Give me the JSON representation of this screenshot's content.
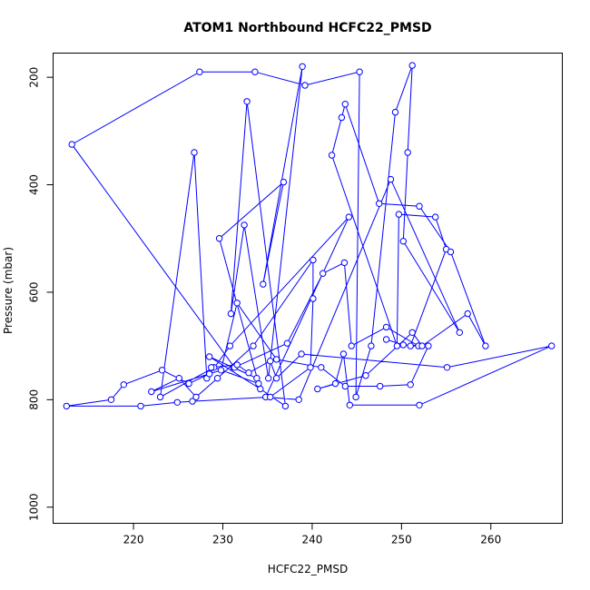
{
  "chart_data": {
    "type": "line",
    "title": "ATOM1 Northbound HCFC22_PMSD",
    "xlabel": "HCFC22_PMSD",
    "ylabel": "Pressure (mbar)",
    "xlim": [
      211,
      268
    ],
    "ylim": [
      1030,
      155
    ],
    "y_reversed": true,
    "x_ticks": [
      220,
      230,
      240,
      250,
      260
    ],
    "y_ticks": [
      200,
      400,
      600,
      800,
      1000
    ],
    "grid": false,
    "legend": "none",
    "series_color": "#0000ff",
    "marker": "open-circle",
    "points": [
      [
        231.2,
        740
      ],
      [
        233.8,
        760
      ],
      [
        228.5,
        720
      ],
      [
        234.2,
        780
      ],
      [
        237.0,
        812
      ],
      [
        232.7,
        245
      ],
      [
        230.9,
        640
      ],
      [
        232.4,
        475
      ],
      [
        235.1,
        760
      ],
      [
        238.9,
        180
      ],
      [
        234.5,
        585
      ],
      [
        236.8,
        395
      ],
      [
        229.6,
        500
      ],
      [
        234.0,
        770
      ],
      [
        229.0,
        740
      ],
      [
        223.0,
        795
      ],
      [
        226.8,
        340
      ],
      [
        228.2,
        760
      ],
      [
        230.8,
        700
      ],
      [
        244.1,
        460
      ],
      [
        234.8,
        795
      ],
      [
        238.5,
        800
      ],
      [
        248.8,
        390
      ],
      [
        256.5,
        675
      ],
      [
        250.2,
        505
      ],
      [
        250.7,
        340
      ],
      [
        251.2,
        178
      ],
      [
        249.3,
        265
      ],
      [
        246.6,
        700
      ],
      [
        244.9,
        795
      ],
      [
        245.3,
        190
      ],
      [
        239.2,
        215
      ],
      [
        233.6,
        190
      ],
      [
        227.4,
        190
      ],
      [
        213.1,
        325
      ],
      [
        231.3,
        740
      ],
      [
        237.2,
        695
      ],
      [
        241.2,
        565
      ],
      [
        243.6,
        545
      ],
      [
        244.4,
        700
      ],
      [
        248.3,
        665
      ],
      [
        251.9,
        700
      ],
      [
        251.0,
        700
      ],
      [
        255.0,
        520
      ],
      [
        253.8,
        460
      ],
      [
        249.7,
        455
      ],
      [
        249.5,
        700
      ],
      [
        242.2,
        345
      ],
      [
        243.3,
        275
      ],
      [
        243.7,
        250
      ],
      [
        247.5,
        435
      ],
      [
        252.0,
        440
      ],
      [
        255.5,
        525
      ],
      [
        259.4,
        700
      ],
      [
        257.4,
        640
      ],
      [
        252.3,
        700
      ],
      [
        251.2,
        675
      ],
      [
        246.0,
        755
      ],
      [
        240.6,
        780
      ],
      [
        242.6,
        770
      ],
      [
        243.5,
        715
      ],
      [
        244.2,
        810
      ],
      [
        252.0,
        810
      ],
      [
        266.8,
        700
      ],
      [
        255.1,
        740
      ],
      [
        238.8,
        715
      ],
      [
        236.0,
        760
      ],
      [
        235.3,
        728
      ],
      [
        232.9,
        750
      ],
      [
        231.6,
        735
      ],
      [
        228.7,
        740
      ],
      [
        228.5,
        752
      ],
      [
        226.2,
        770
      ],
      [
        223.2,
        745
      ],
      [
        218.9,
        772
      ],
      [
        217.5,
        800
      ],
      [
        212.5,
        812
      ],
      [
        220.8,
        812
      ],
      [
        224.9,
        805
      ],
      [
        226.6,
        803
      ],
      [
        235.3,
        795
      ],
      [
        239.8,
        740
      ],
      [
        240.1,
        612
      ],
      [
        240.1,
        540
      ],
      [
        233.4,
        700
      ],
      [
        229.4,
        760
      ],
      [
        227.0,
        795
      ],
      [
        225.1,
        760
      ],
      [
        222.0,
        785
      ],
      [
        229.8,
        745
      ],
      [
        231.6,
        620
      ],
      [
        236.0,
        725
      ],
      [
        241.0,
        740
      ],
      [
        243.7,
        775
      ],
      [
        247.6,
        775
      ],
      [
        251.0,
        772
      ],
      [
        253.0,
        700
      ],
      [
        250.2,
        698
      ],
      [
        248.3,
        688
      ]
    ]
  }
}
